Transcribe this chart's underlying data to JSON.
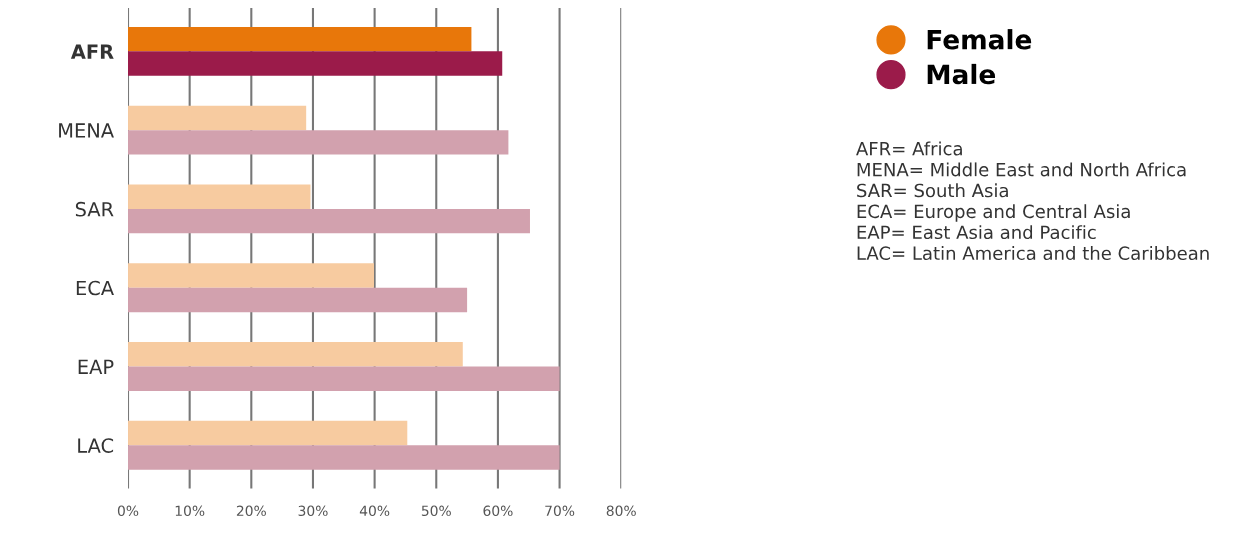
{
  "chart_data": {
    "type": "bar",
    "orientation": "horizontal",
    "categories": [
      "AFR",
      "MENA",
      "SAR",
      "ECA",
      "EAP",
      "LAC"
    ],
    "series": [
      {
        "name": "Female",
        "color": "#e8770a",
        "colors": [
          "#e8770a",
          "#f7cba0",
          "#f7cba0",
          "#f7cba0",
          "#f7cba0",
          "#f7cba0"
        ],
        "values": [
          55.7,
          28.9,
          29.6,
          39.9,
          54.3,
          45.3
        ]
      },
      {
        "name": "Male",
        "color": "#9b1b4a",
        "colors": [
          "#9b1b4a",
          "#d2a1ae",
          "#d2a1ae",
          "#d2a1ae",
          "#d2a1ae",
          "#d2a1ae"
        ],
        "values": [
          60.7,
          61.7,
          65.2,
          55.0,
          70.0,
          70.0
        ]
      }
    ],
    "xlim": [
      0,
      80
    ],
    "xticks": [
      {
        "value": 0,
        "label": "0%"
      },
      {
        "value": 10,
        "label": "10%"
      },
      {
        "value": 20,
        "label": "20%"
      },
      {
        "value": 30,
        "label": "30%"
      },
      {
        "value": 40,
        "label": "40%"
      },
      {
        "value": 50,
        "label": "50%"
      },
      {
        "value": 60,
        "label": "60%"
      },
      {
        "value": 70,
        "label": "70%"
      },
      {
        "value": 80,
        "label": "80%"
      }
    ],
    "grid": "x",
    "legend": "top right",
    "marker": "circle",
    "annotations": [
      "AFR= Africa\nMENA= Middle East and North Africa\nSAR= South Asia\nECA= Europe and Central Asia\nEAP= East Asia and Pacific\nLAC= Latin America and the Caribbean"
    ]
  }
}
